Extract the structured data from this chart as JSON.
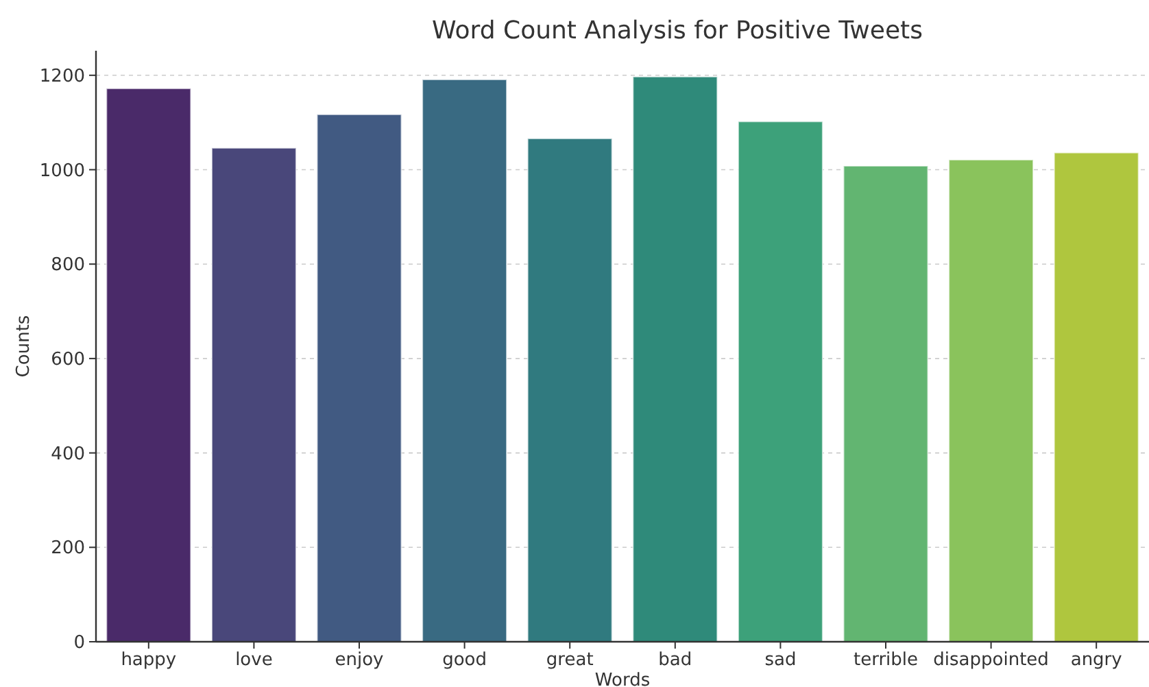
{
  "chart_data": {
    "type": "bar",
    "title": "Word Count Analysis for Positive Tweets",
    "xlabel": "Words",
    "ylabel": "Counts",
    "categories": [
      "happy",
      "love",
      "enjoy",
      "good",
      "great",
      "bad",
      "sad",
      "terrible",
      "disappointed",
      "angry"
    ],
    "values": [
      1172,
      1046,
      1117,
      1191,
      1066,
      1197,
      1102,
      1008,
      1021,
      1036
    ],
    "colors": [
      "#4a2a69",
      "#49477a",
      "#415a82",
      "#396a82",
      "#307a7f",
      "#2f8a7a",
      "#3da17a",
      "#62b571",
      "#8ac35c",
      "#afc63e"
    ],
    "ylim": [
      0,
      1252
    ],
    "yticks": [
      0,
      200,
      400,
      600,
      800,
      1000,
      1200
    ],
    "grid": "y"
  }
}
